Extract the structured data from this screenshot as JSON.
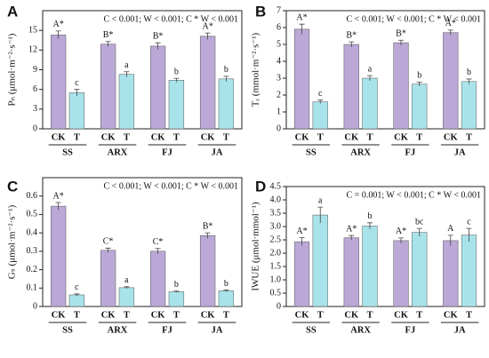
{
  "chart_data": [
    {
      "type": "bar",
      "panel": "A",
      "note": "C < 0.001; W < 0.001; C * W < 0.001",
      "ylabel": "Pₙ (μmol·m⁻²·s⁻¹)",
      "categories": [
        "SS",
        "ARX",
        "FJ",
        "JA"
      ],
      "ylim": [
        0,
        18
      ],
      "yticks": [
        0,
        3,
        6,
        9,
        12,
        15
      ],
      "series": [
        {
          "name": "CK",
          "color": "#bba8d6",
          "values": [
            14.3,
            12.9,
            12.6,
            14.1
          ],
          "errors": [
            0.6,
            0.4,
            0.5,
            0.5
          ],
          "significance": [
            "A*",
            "B*",
            "B*",
            "A*"
          ]
        },
        {
          "name": "T",
          "color": "#a9e3ea",
          "values": [
            5.5,
            8.3,
            7.4,
            7.6
          ],
          "errors": [
            0.5,
            0.4,
            0.3,
            0.4
          ],
          "significance": [
            "c",
            "a",
            "b",
            "b"
          ]
        }
      ]
    },
    {
      "type": "bar",
      "panel": "B",
      "note": "C < 0.001; W < 0.001; C * W < 0.001",
      "ylabel": "Tᵣ (mmol·m⁻²·s⁻¹)",
      "categories": [
        "SS",
        "ARX",
        "FJ",
        "JA"
      ],
      "ylim": [
        0,
        7
      ],
      "yticks": [
        0,
        1,
        2,
        3,
        4,
        5,
        6,
        7
      ],
      "series": [
        {
          "name": "CK",
          "color": "#bba8d6",
          "values": [
            5.9,
            5.0,
            5.1,
            5.7
          ],
          "errors": [
            0.3,
            0.15,
            0.15,
            0.15
          ],
          "significance": [
            "A*",
            "B*",
            "B*",
            "A*"
          ]
        },
        {
          "name": "T",
          "color": "#a9e3ea",
          "values": [
            1.6,
            3.0,
            2.65,
            2.8
          ],
          "errors": [
            0.1,
            0.15,
            0.12,
            0.15
          ],
          "significance": [
            "c",
            "a",
            "b",
            "b"
          ]
        }
      ]
    },
    {
      "type": "bar",
      "panel": "C",
      "note": "C < 0.001; W < 0.001; C * W < 0.001",
      "ylabel": "Gₛ (μmol·m⁻²·s⁻¹)",
      "categories": [
        "SS",
        "ARX",
        "FJ",
        "JA"
      ],
      "ylim": [
        0,
        0.7
      ],
      "yticks": [
        0,
        0.1,
        0.2,
        0.3,
        0.4,
        0.5,
        0.6
      ],
      "series": [
        {
          "name": "CK",
          "color": "#bba8d6",
          "values": [
            0.545,
            0.305,
            0.3,
            0.385
          ],
          "errors": [
            0.02,
            0.012,
            0.015,
            0.015
          ],
          "significance": [
            "A*",
            "C*",
            "C*",
            "B*"
          ]
        },
        {
          "name": "T",
          "color": "#a9e3ea",
          "values": [
            0.063,
            0.102,
            0.08,
            0.085
          ],
          "errors": [
            0.005,
            0.005,
            0.004,
            0.004
          ],
          "significance": [
            "c",
            "a",
            "b",
            "b"
          ]
        }
      ]
    },
    {
      "type": "bar",
      "panel": "D",
      "note": "C = 0.001; W < 0.001; C * W < 0.001",
      "ylabel": "IWUE (μmol·mmol⁻¹)",
      "categories": [
        "SS",
        "ARX",
        "FJ",
        "JA"
      ],
      "ylim": [
        0,
        4.5
      ],
      "yticks": [
        0,
        0.5,
        {
          "value": 1,
          "label": "1.0"
        },
        1.5,
        {
          "value": 2,
          "label": "2.0"
        },
        2.5,
        {
          "value": 3,
          "label": "3.0"
        },
        3.5,
        {
          "value": 4,
          "label": "4.0"
        },
        4.5
      ],
      "series": [
        {
          "name": "CK",
          "color": "#bba8d6",
          "values": [
            2.43,
            2.58,
            2.47,
            2.47
          ],
          "errors": [
            0.15,
            0.08,
            0.1,
            0.2
          ],
          "significance": [
            "A*",
            "A*",
            "A*",
            "A"
          ]
        },
        {
          "name": "T",
          "color": "#a9e3ea",
          "values": [
            3.43,
            3.02,
            2.78,
            2.68
          ],
          "errors": [
            0.3,
            0.12,
            0.15,
            0.25
          ],
          "significance": [
            "a",
            "b",
            "bc",
            "c"
          ]
        }
      ]
    }
  ]
}
